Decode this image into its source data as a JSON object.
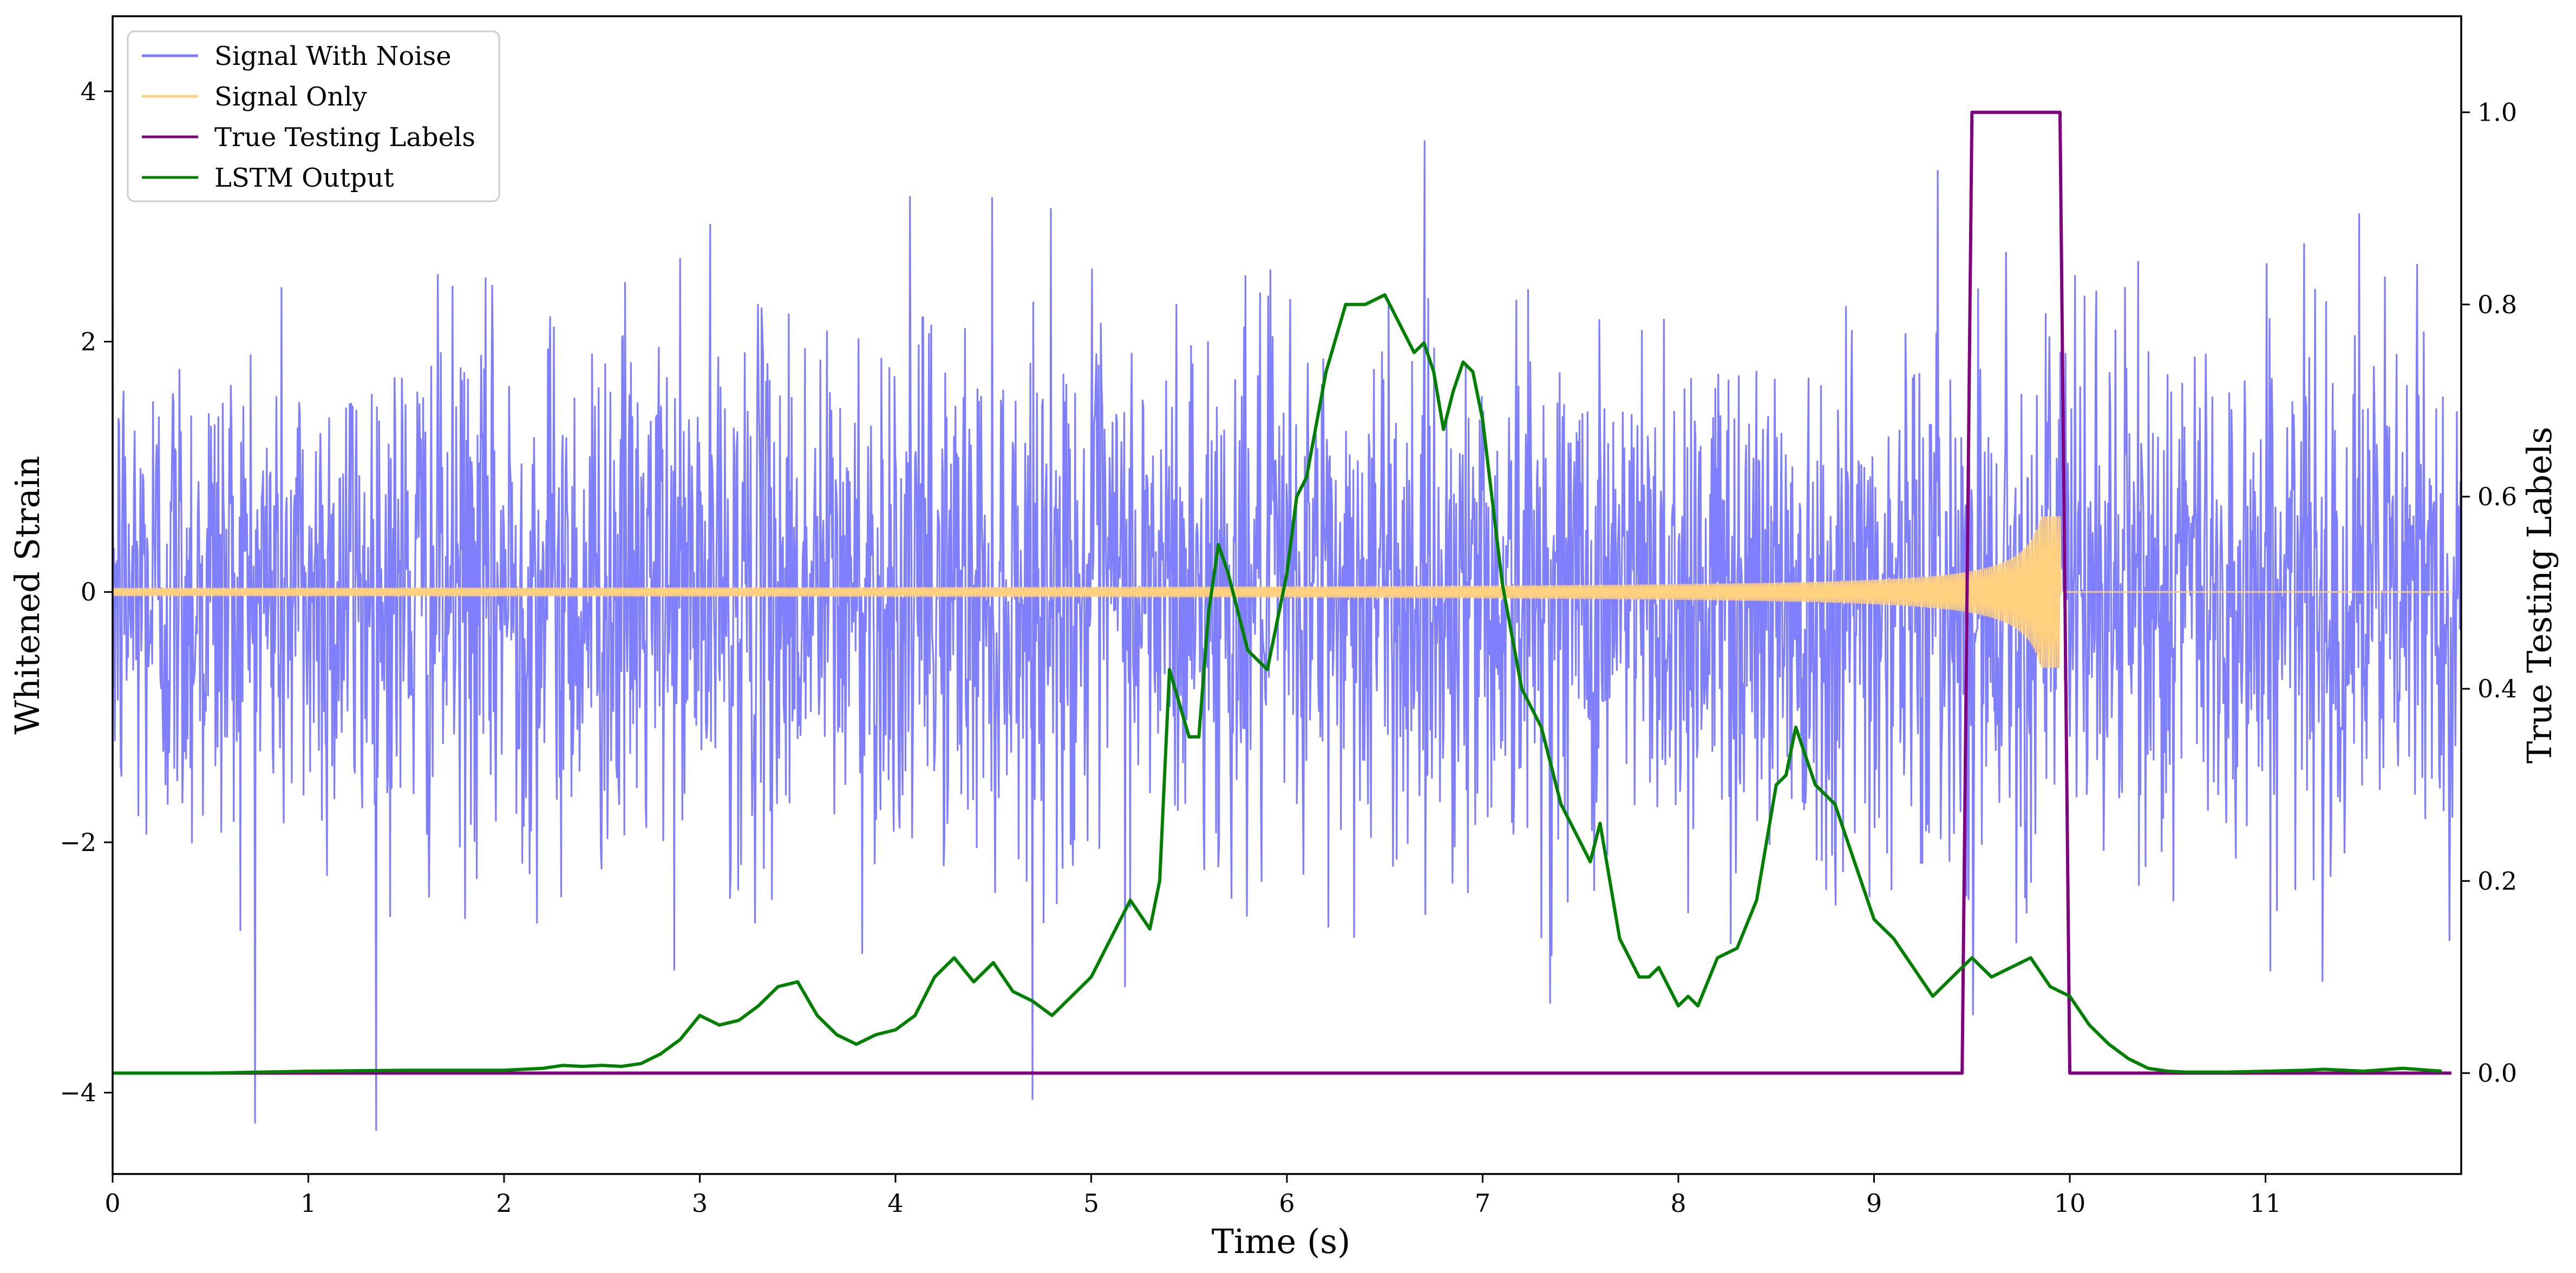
{
  "chart_data": {
    "type": "line",
    "xlabel": "Time (s)",
    "ylabel": "Whitened Strain",
    "y2label": "True Testing Labels",
    "xlim": [
      0,
      12
    ],
    "ylim": [
      -4.65,
      4.6
    ],
    "y2lim": [
      -0.105,
      1.1
    ],
    "x_ticks": [
      0,
      1,
      2,
      3,
      4,
      5,
      6,
      7,
      8,
      9,
      10,
      11
    ],
    "x_tick_labels": [
      "0",
      "1",
      "2",
      "3",
      "4",
      "5",
      "6",
      "7",
      "8",
      "9",
      "10",
      "11"
    ],
    "y_ticks": [
      -4,
      -2,
      0,
      2,
      4
    ],
    "y_tick_labels": [
      "−4",
      "−2",
      "0",
      "2",
      "4"
    ],
    "y2_ticks": [
      0.0,
      0.2,
      0.4,
      0.6,
      0.8,
      1.0
    ],
    "y2_tick_labels": [
      "0.0",
      "0.2",
      "0.4",
      "0.6",
      "0.8",
      "1.0"
    ],
    "legend_position": "upper-left",
    "grid": false,
    "series": [
      {
        "name": "Signal With Noise",
        "axis": "left",
        "color": "#7f7ffe",
        "style": "dense noise, standard deviation about 1, peaks to about ±4",
        "noise_sigma": 1.0,
        "x_range": [
          0,
          12
        ]
      },
      {
        "name": "Signal Only",
        "axis": "left",
        "color": "#ffd080",
        "style": "chirp with amplitude rising from about 0.02 to about 0.6, ending near t=9.95",
        "amplitude_start": 0.02,
        "amplitude_peak": 0.6,
        "merger_time": 9.95
      },
      {
        "name": "True Testing Labels",
        "axis": "right",
        "color": "#800080",
        "x": [
          0,
          9.45,
          9.5,
          9.95,
          10.0,
          11.95
        ],
        "y": [
          0,
          0,
          1,
          1,
          0,
          0
        ]
      },
      {
        "name": "LSTM Output",
        "axis": "right",
        "color": "#008000",
        "x": [
          0,
          0.5,
          1.0,
          1.5,
          2.0,
          2.2,
          2.3,
          2.4,
          2.5,
          2.6,
          2.7,
          2.8,
          2.9,
          3.0,
          3.1,
          3.2,
          3.3,
          3.4,
          3.5,
          3.6,
          3.7,
          3.8,
          3.9,
          4.0,
          4.1,
          4.2,
          4.3,
          4.4,
          4.5,
          4.6,
          4.7,
          4.8,
          4.9,
          5.0,
          5.1,
          5.2,
          5.3,
          5.35,
          5.4,
          5.5,
          5.55,
          5.6,
          5.65,
          5.7,
          5.8,
          5.9,
          6.0,
          6.05,
          6.1,
          6.2,
          6.3,
          6.4,
          6.5,
          6.6,
          6.65,
          6.7,
          6.75,
          6.8,
          6.85,
          6.9,
          6.95,
          7.0,
          7.1,
          7.2,
          7.3,
          7.4,
          7.5,
          7.55,
          7.6,
          7.7,
          7.8,
          7.85,
          7.9,
          8.0,
          8.05,
          8.1,
          8.2,
          8.3,
          8.4,
          8.5,
          8.55,
          8.6,
          8.65,
          8.7,
          8.8,
          8.9,
          9.0,
          9.1,
          9.2,
          9.3,
          9.4,
          9.5,
          9.6,
          9.7,
          9.8,
          9.9,
          10.0,
          10.1,
          10.2,
          10.3,
          10.4,
          10.5,
          10.6,
          10.8,
          11.0,
          11.2,
          11.3,
          11.5,
          11.7,
          11.9
        ],
        "y": [
          0.0,
          0.0,
          0.002,
          0.003,
          0.003,
          0.005,
          0.008,
          0.007,
          0.008,
          0.007,
          0.01,
          0.02,
          0.035,
          0.06,
          0.05,
          0.055,
          0.07,
          0.09,
          0.095,
          0.06,
          0.04,
          0.03,
          0.04,
          0.045,
          0.06,
          0.1,
          0.12,
          0.095,
          0.115,
          0.085,
          0.075,
          0.06,
          0.08,
          0.1,
          0.14,
          0.18,
          0.15,
          0.2,
          0.42,
          0.35,
          0.35,
          0.48,
          0.55,
          0.52,
          0.44,
          0.42,
          0.52,
          0.6,
          0.62,
          0.73,
          0.8,
          0.8,
          0.81,
          0.77,
          0.75,
          0.76,
          0.73,
          0.67,
          0.71,
          0.74,
          0.73,
          0.68,
          0.51,
          0.4,
          0.36,
          0.28,
          0.24,
          0.22,
          0.26,
          0.14,
          0.1,
          0.1,
          0.11,
          0.07,
          0.08,
          0.07,
          0.12,
          0.13,
          0.18,
          0.3,
          0.31,
          0.36,
          0.33,
          0.3,
          0.28,
          0.22,
          0.16,
          0.14,
          0.11,
          0.08,
          0.1,
          0.12,
          0.1,
          0.11,
          0.12,
          0.09,
          0.08,
          0.05,
          0.03,
          0.015,
          0.005,
          0.002,
          0.001,
          0.001,
          0.002,
          0.003,
          0.004,
          0.002,
          0.005,
          0.002
        ]
      }
    ]
  }
}
